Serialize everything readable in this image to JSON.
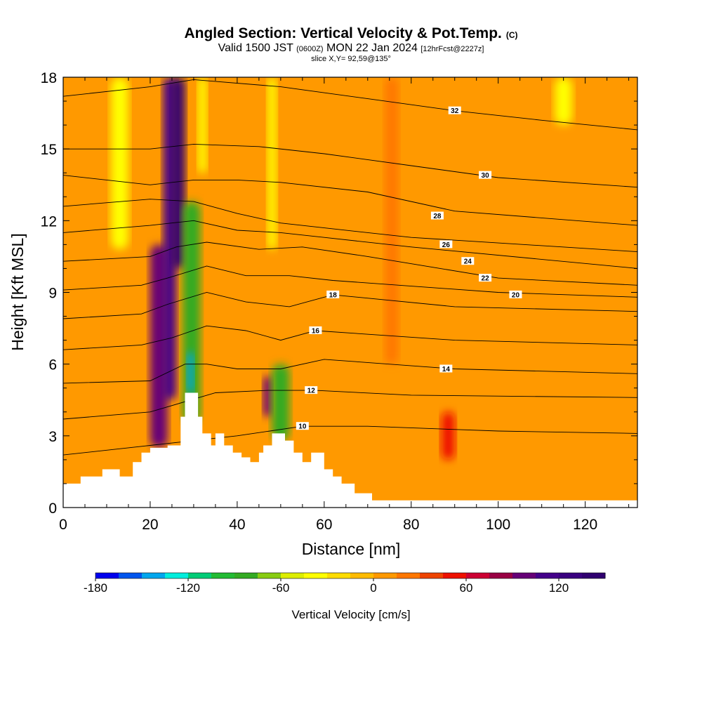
{
  "header": {
    "title": "Angled Section: Vertical Velocity & Pot.Temp.",
    "title_tag": "(C)",
    "valid_a": "Valid 1500 JST ",
    "valid_b": "(0600Z)",
    "valid_c": " MON 22 Jan 2024 ",
    "valid_d": "[12hrFcst@2227z]",
    "slice": "slice X,Y= 92,59@135°"
  },
  "chart_data": {
    "type": "heatmap",
    "xlabel": "Distance [nm]",
    "ylabel": "Height [Kft MSL]",
    "xlim": [
      0,
      132
    ],
    "ylim": [
      0,
      18
    ],
    "x_ticks": [
      "0",
      "20",
      "40",
      "60",
      "80",
      "100",
      "120"
    ],
    "x_tick_values": [
      0,
      20,
      40,
      60,
      80,
      100,
      120
    ],
    "y_ticks": [
      "0",
      "3",
      "6",
      "9",
      "12",
      "15",
      "18"
    ],
    "y_tick_values": [
      0,
      3,
      6,
      9,
      12,
      15,
      18
    ],
    "terrain": [
      [
        0,
        1.0
      ],
      [
        4,
        1.0
      ],
      [
        4,
        1.3
      ],
      [
        9,
        1.3
      ],
      [
        9,
        1.6
      ],
      [
        13,
        1.6
      ],
      [
        13,
        1.3
      ],
      [
        16,
        1.3
      ],
      [
        16,
        1.9
      ],
      [
        18,
        1.9
      ],
      [
        18,
        2.3
      ],
      [
        20,
        2.3
      ],
      [
        20,
        2.5
      ],
      [
        24,
        2.5
      ],
      [
        24,
        2.6
      ],
      [
        27,
        2.6
      ],
      [
        27,
        3.8
      ],
      [
        28,
        3.8
      ],
      [
        28,
        4.8
      ],
      [
        31,
        4.8
      ],
      [
        31,
        3.8
      ],
      [
        32,
        3.8
      ],
      [
        32,
        3.1
      ],
      [
        34,
        3.1
      ],
      [
        34,
        2.6
      ],
      [
        35,
        2.6
      ],
      [
        35,
        3.1
      ],
      [
        37,
        3.1
      ],
      [
        37,
        2.6
      ],
      [
        39,
        2.6
      ],
      [
        39,
        2.3
      ],
      [
        41,
        2.3
      ],
      [
        41,
        2.1
      ],
      [
        43,
        2.1
      ],
      [
        43,
        1.9
      ],
      [
        45,
        1.9
      ],
      [
        45,
        2.3
      ],
      [
        46,
        2.3
      ],
      [
        46,
        2.6
      ],
      [
        48,
        2.6
      ],
      [
        48,
        3.1
      ],
      [
        51,
        3.1
      ],
      [
        51,
        2.8
      ],
      [
        53,
        2.8
      ],
      [
        53,
        2.3
      ],
      [
        55,
        2.3
      ],
      [
        55,
        1.9
      ],
      [
        57,
        1.9
      ],
      [
        57,
        2.3
      ],
      [
        60,
        2.3
      ],
      [
        60,
        1.6
      ],
      [
        62,
        1.6
      ],
      [
        62,
        1.3
      ],
      [
        64,
        1.3
      ],
      [
        64,
        1.0
      ],
      [
        67,
        1.0
      ],
      [
        67,
        0.6
      ],
      [
        71,
        0.6
      ],
      [
        71,
        0.3
      ],
      [
        132,
        0.3
      ]
    ],
    "velocity_bands": [
      {
        "x0": 0,
        "x1": 132,
        "y0": 0,
        "y1": 18,
        "value": 10
      },
      {
        "x0": 11,
        "x1": 15,
        "y0": 10.8,
        "y1": 18,
        "value": -40
      },
      {
        "x0": 20,
        "x1": 24,
        "y0": 2.5,
        "y1": 11,
        "value": 90
      },
      {
        "x0": 23,
        "x1": 26,
        "y0": 4.5,
        "y1": 18,
        "value": 115
      },
      {
        "x0": 25,
        "x1": 28,
        "y0": 10,
        "y1": 18,
        "value": 150
      },
      {
        "x0": 27.5,
        "x1": 31.5,
        "y0": 3.5,
        "y1": 12.8,
        "value": -90
      },
      {
        "x0": 28.5,
        "x1": 30,
        "y0": 4.8,
        "y1": 6.5,
        "value": -150
      },
      {
        "x0": 31,
        "x1": 33,
        "y0": 14,
        "y1": 18,
        "value": -40
      },
      {
        "x0": 46,
        "x1": 48,
        "y0": 3.8,
        "y1": 5.5,
        "value": 100
      },
      {
        "x0": 48,
        "x1": 52,
        "y0": 2.8,
        "y1": 6,
        "value": -80
      },
      {
        "x0": 47,
        "x1": 49,
        "y0": 10.8,
        "y1": 18,
        "value": -40
      },
      {
        "x0": 74,
        "x1": 77,
        "y0": 6,
        "y1": 18,
        "value": 20
      },
      {
        "x0": 87,
        "x1": 90,
        "y0": 2,
        "y1": 4,
        "value": 45
      },
      {
        "x0": 113,
        "x1": 117,
        "y0": 16,
        "y1": 18,
        "value": -40
      }
    ],
    "colorbar": {
      "label": "Vertical Velocity [cm/s]",
      "tick_labels": [
        "-180",
        "-120",
        "-60",
        "0",
        "60",
        "120"
      ],
      "tick_values": [
        -180,
        -120,
        -60,
        0,
        60,
        120
      ],
      "range": [
        -180,
        150
      ],
      "step": 15,
      "colors": [
        "#0000ee",
        "#0055ee",
        "#00a6ee",
        "#00eedd",
        "#00cc77",
        "#22bb33",
        "#33aa22",
        "#88cc11",
        "#ddee00",
        "#ffff00",
        "#ffdd00",
        "#ffbb00",
        "#ff9900",
        "#ff7700",
        "#ee4400",
        "#ee1100",
        "#cc0033",
        "#990044",
        "#660077",
        "#44008a",
        "#3a0080",
        "#300070"
      ]
    },
    "isentropes": [
      {
        "label": "10",
        "points": [
          [
            0,
            2.2
          ],
          [
            20,
            2.6
          ],
          [
            40,
            3.0
          ],
          [
            55,
            3.4
          ],
          [
            70,
            3.4
          ],
          [
            100,
            3.2
          ],
          [
            132,
            3.1
          ]
        ],
        "label_at": [
          55,
          3.4
        ]
      },
      {
        "label": "12",
        "points": [
          [
            0,
            3.7
          ],
          [
            20,
            4.0
          ],
          [
            35,
            4.8
          ],
          [
            47,
            4.9
          ],
          [
            58,
            4.9
          ],
          [
            80,
            4.7
          ],
          [
            132,
            4.6
          ]
        ],
        "label_at": [
          57,
          4.9
        ]
      },
      {
        "label": "14",
        "points": [
          [
            0,
            5.2
          ],
          [
            20,
            5.3
          ],
          [
            28,
            6.0
          ],
          [
            33,
            6.0
          ],
          [
            40,
            5.8
          ],
          [
            50,
            5.8
          ],
          [
            60,
            6.2
          ],
          [
            90,
            5.8
          ],
          [
            132,
            5.6
          ]
        ],
        "label_at": [
          88,
          5.8
        ]
      },
      {
        "label": "16",
        "points": [
          [
            0,
            6.6
          ],
          [
            18,
            6.8
          ],
          [
            25,
            7.1
          ],
          [
            33,
            7.6
          ],
          [
            42,
            7.4
          ],
          [
            50,
            7.0
          ],
          [
            58,
            7.4
          ],
          [
            90,
            7.0
          ],
          [
            132,
            6.8
          ]
        ],
        "label_at": [
          58,
          7.4
        ]
      },
      {
        "label": "18",
        "points": [
          [
            0,
            7.9
          ],
          [
            18,
            8.1
          ],
          [
            24,
            8.5
          ],
          [
            33,
            9.0
          ],
          [
            42,
            8.6
          ],
          [
            52,
            8.4
          ],
          [
            62,
            8.9
          ],
          [
            90,
            8.4
          ],
          [
            132,
            8.2
          ]
        ],
        "label_at": [
          62,
          8.9
        ]
      },
      {
        "label": "20",
        "points": [
          [
            0,
            9.1
          ],
          [
            18,
            9.3
          ],
          [
            24,
            9.6
          ],
          [
            33,
            10.1
          ],
          [
            42,
            9.7
          ],
          [
            52,
            9.7
          ],
          [
            62,
            9.5
          ],
          [
            100,
            9.0
          ],
          [
            132,
            8.8
          ]
        ],
        "label_at": [
          104,
          8.9
        ]
      },
      {
        "label": "22",
        "points": [
          [
            0,
            10.3
          ],
          [
            20,
            10.5
          ],
          [
            26,
            10.9
          ],
          [
            33,
            11.1
          ],
          [
            45,
            10.8
          ],
          [
            55,
            10.9
          ],
          [
            70,
            10.5
          ],
          [
            100,
            9.6
          ],
          [
            132,
            9.3
          ]
        ],
        "label_at": [
          97,
          9.6
        ]
      },
      {
        "label": "24",
        "points": [
          [
            0,
            11.5
          ],
          [
            20,
            11.8
          ],
          [
            30,
            12.0
          ],
          [
            40,
            11.6
          ],
          [
            50,
            11.5
          ],
          [
            60,
            11.3
          ],
          [
            80,
            10.9
          ],
          [
            132,
            10.0
          ]
        ],
        "label_at": [
          93,
          10.3
        ]
      },
      {
        "label": "26",
        "points": [
          [
            0,
            12.6
          ],
          [
            20,
            12.9
          ],
          [
            30,
            12.8
          ],
          [
            40,
            12.3
          ],
          [
            50,
            11.9
          ],
          [
            60,
            11.7
          ],
          [
            80,
            11.3
          ],
          [
            132,
            10.7
          ]
        ],
        "label_at": [
          88,
          11.0
        ]
      },
      {
        "label": "28",
        "points": [
          [
            0,
            13.9
          ],
          [
            20,
            13.5
          ],
          [
            30,
            13.7
          ],
          [
            40,
            13.7
          ],
          [
            50,
            13.6
          ],
          [
            70,
            13.2
          ],
          [
            90,
            12.4
          ],
          [
            132,
            11.8
          ]
        ],
        "label_at": [
          86,
          12.2
        ]
      },
      {
        "label": "30",
        "points": [
          [
            0,
            15.0
          ],
          [
            20,
            15.0
          ],
          [
            30,
            15.2
          ],
          [
            45,
            15.1
          ],
          [
            60,
            14.8
          ],
          [
            80,
            14.3
          ],
          [
            100,
            13.8
          ],
          [
            132,
            13.4
          ]
        ],
        "label_at": [
          97,
          13.9
        ]
      },
      {
        "label": "32",
        "points": [
          [
            0,
            17.2
          ],
          [
            20,
            17.6
          ],
          [
            30,
            17.9
          ],
          [
            50,
            17.6
          ],
          [
            70,
            17.1
          ],
          [
            90,
            16.6
          ],
          [
            110,
            16.2
          ],
          [
            132,
            15.8
          ]
        ],
        "label_at": [
          90,
          16.6
        ]
      }
    ]
  }
}
